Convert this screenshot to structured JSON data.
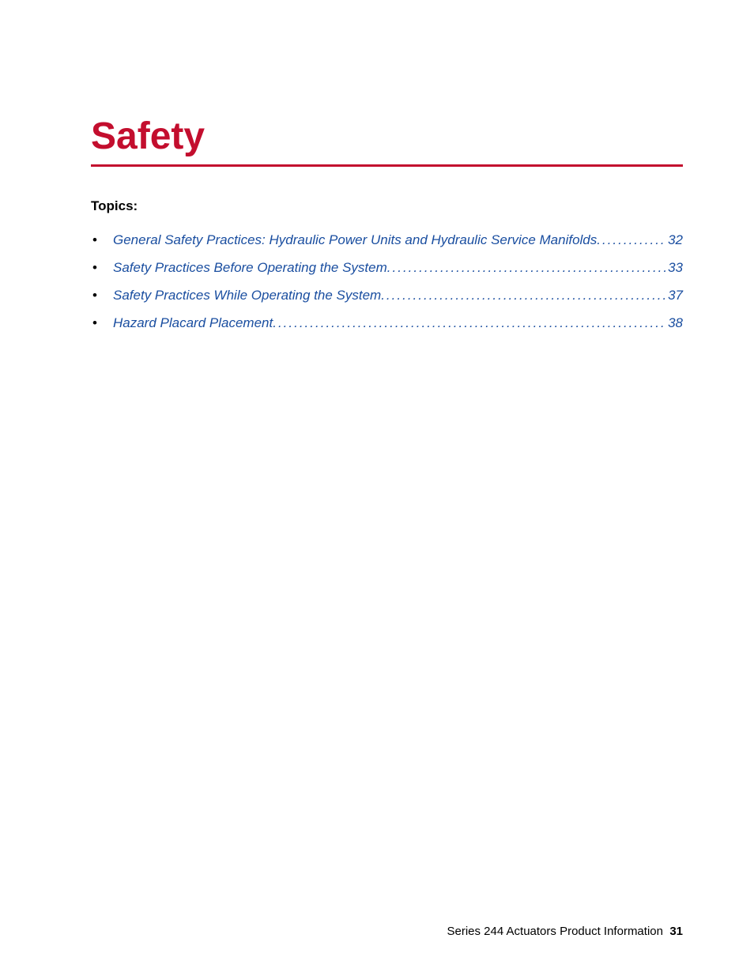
{
  "colors": {
    "title": "#c30e2e",
    "rule": "#c30e2e",
    "link": "#1a4ea0",
    "text": "#000000",
    "background": "#ffffff"
  },
  "title": "Safety",
  "topics_label": "Topics:",
  "toc": [
    {
      "label": "General Safety Practices: Hydraulic Power Units and Hydraulic Service Manifolds",
      "page": "32"
    },
    {
      "label": "Safety Practices Before Operating the System",
      "page": "33"
    },
    {
      "label": "Safety Practices While Operating the System ",
      "page": "37"
    },
    {
      "label": "Hazard Placard Placement",
      "page": "38"
    }
  ],
  "footer": {
    "text": "Series 244 Actuators Product Information",
    "page": "31"
  }
}
